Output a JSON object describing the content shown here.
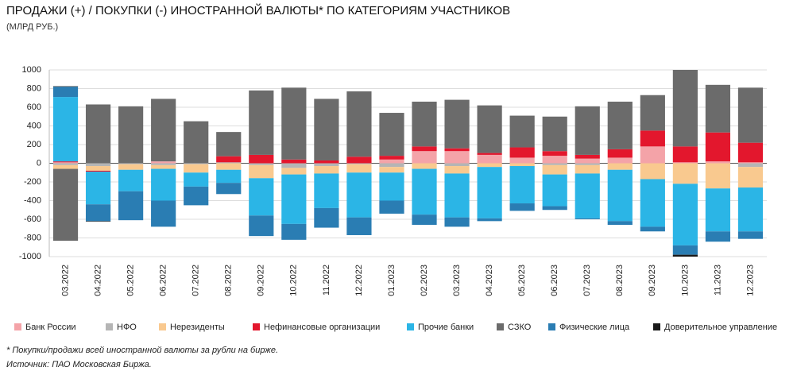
{
  "chart_data": {
    "type": "stacked_bar",
    "title": "ПРОДАЖИ (+) / ПОКУПКИ (-) ИНОСТРАННОЙ ВАЛЮТЫ* ПО КАТЕГОРИЯМ УЧАСТНИКОВ",
    "subtitle": "(МЛРД РУБ.)",
    "categories": [
      "03.2022",
      "04.2022",
      "05.2022",
      "06.2022",
      "07.2022",
      "08.2022",
      "09.2022",
      "10.2022",
      "11.2022",
      "12.2022",
      "01.2023",
      "02.2023",
      "03.2023",
      "04.2023",
      "05.2023",
      "06.2023",
      "07.2023",
      "08.2023",
      "09.2023",
      "10.2023",
      "11.2023",
      "12.2023"
    ],
    "series": [
      {
        "name": "Банк России",
        "color": "#f4a3a8",
        "values": [
          10,
          0,
          0,
          20,
          0,
          0,
          0,
          0,
          0,
          0,
          40,
          130,
          130,
          90,
          60,
          80,
          50,
          60,
          180,
          10,
          20,
          10
        ]
      },
      {
        "name": "НФО",
        "color": "#b5b5b5",
        "values": [
          -20,
          -30,
          -10,
          -20,
          -10,
          10,
          -20,
          -50,
          -30,
          -10,
          -40,
          0,
          -30,
          0,
          0,
          -20,
          -20,
          0,
          0,
          0,
          0,
          -40
        ]
      },
      {
        "name": "Нерезиденты",
        "color": "#f9c98f",
        "values": [
          -40,
          -50,
          -60,
          -40,
          -90,
          -70,
          -140,
          -70,
          -80,
          -90,
          -60,
          -60,
          -80,
          -40,
          -30,
          -100,
          -90,
          -70,
          -170,
          -220,
          -270,
          -220
        ]
      },
      {
        "name": "Нефинансовые организации",
        "color": "#e3172d",
        "values": [
          10,
          -10,
          0,
          0,
          0,
          65,
          90,
          40,
          30,
          70,
          40,
          50,
          30,
          20,
          110,
          50,
          40,
          90,
          170,
          170,
          310,
          210
        ]
      },
      {
        "name": "Прочие банки",
        "color": "#2bb5e6",
        "values": [
          690,
          -350,
          -230,
          -340,
          -150,
          -140,
          -400,
          -530,
          -370,
          -480,
          -300,
          -490,
          -470,
          -550,
          -400,
          -340,
          -480,
          -550,
          -510,
          -660,
          -460,
          -470
        ]
      },
      {
        "name": "СЗКО",
        "color": "#6b6b6b",
        "values": [
          -770,
          630,
          610,
          670,
          450,
          260,
          690,
          770,
          660,
          700,
          460,
          480,
          520,
          510,
          340,
          370,
          520,
          510,
          380,
          820,
          510,
          590
        ]
      },
      {
        "name": "Физические лица",
        "color": "#2a7db3",
        "values": [
          110,
          -180,
          -310,
          -280,
          -200,
          -120,
          -220,
          -170,
          -210,
          -190,
          -140,
          -110,
          -100,
          -30,
          -80,
          -40,
          -10,
          -40,
          -50,
          -100,
          -110,
          -80
        ]
      },
      {
        "name": "Доверительное управление",
        "color": "#1a1a1a",
        "values": [
          5,
          -5,
          0,
          0,
          0,
          0,
          0,
          0,
          0,
          0,
          0,
          0,
          0,
          0,
          0,
          0,
          0,
          0,
          0,
          -20,
          0,
          0
        ]
      }
    ],
    "ylim": [
      -1000,
      1000
    ],
    "yticks": [
      -1000,
      -800,
      -600,
      -400,
      -200,
      0,
      200,
      400,
      600,
      800,
      1000
    ],
    "grid": true,
    "notes": [
      "* Покупки/продажи всей иностранной валюты за рубли на бирже.",
      "Источник: ПАО Московская Биржа."
    ]
  }
}
